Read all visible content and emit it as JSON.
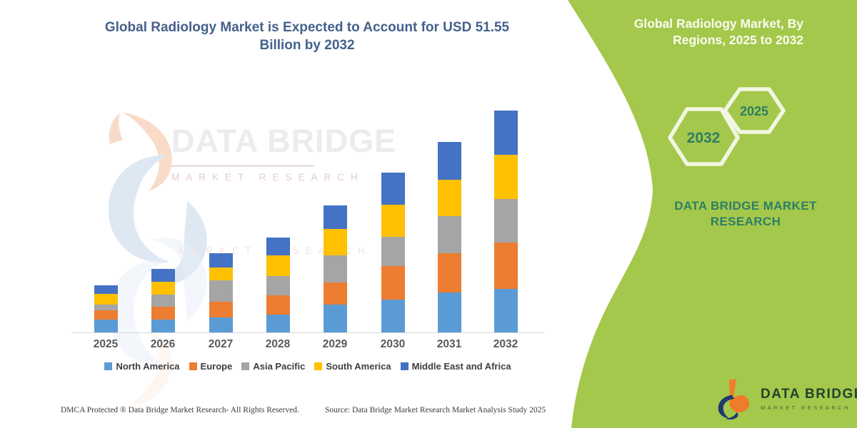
{
  "left_panel": {
    "title": "Global Radiology Market is Expected to Account for USD 51.55 Billion by 2032",
    "footer_left": "DMCA Protected ® Data Bridge Market Research-  All Rights Reserved.",
    "footer_right": "Source: Data Bridge Market Research  Market Analysis Study 2025",
    "watermark": {
      "brand": "DATA BRIDGE",
      "sub": "MARKET RESEARCH"
    }
  },
  "right_panel": {
    "title_line1": "Global Radiology Market, By",
    "title_line2": "Regions, 2025 to 2032",
    "hexagon_big_label": "2032",
    "hexagon_small_label": "2025",
    "caption_line1": "DATA BRIDGE MARKET",
    "caption_line2": "RESEARCH",
    "background_color": "#a4c84b",
    "hexagon_outline_color": "#f2f6e2",
    "text_color": "#2e7e67"
  },
  "brand_logo": {
    "name": "DATA BRIDGE",
    "sub": "MARKET RESEARCH"
  },
  "chart_data": {
    "type": "bar",
    "stacked": true,
    "title": "Global Radiology Market is Expected to Account for USD 51.55 Billion by 2032",
    "unit": "USD Billion",
    "categories": [
      "2025",
      "2026",
      "2027",
      "2028",
      "2029",
      "2030",
      "2031",
      "2032"
    ],
    "series": [
      {
        "name": "North America",
        "color": "#5b9bd5",
        "values": [
          3.0,
          3.0,
          3.5,
          4.1,
          6.5,
          7.6,
          9.3,
          10.1
        ]
      },
      {
        "name": "Europe",
        "color": "#ed7d31",
        "values": [
          2.2,
          3.0,
          3.6,
          4.5,
          5.1,
          7.8,
          9.1,
          10.8
        ]
      },
      {
        "name": "Asia Pacific",
        "color": "#a5a5a5",
        "values": [
          1.3,
          2.8,
          5.0,
          4.5,
          6.3,
          6.8,
          8.6,
          10.1
        ]
      },
      {
        "name": "South America",
        "color": "#ffc000",
        "values": [
          2.5,
          3.0,
          3.0,
          4.8,
          6.1,
          7.5,
          8.5,
          10.25
        ]
      },
      {
        "name": "Middle East and Africa",
        "color": "#4472c4",
        "values": [
          2.0,
          3.0,
          3.3,
          4.1,
          5.5,
          7.5,
          8.8,
          10.3
        ]
      }
    ],
    "totals_by_year": [
      11.0,
      14.8,
      18.4,
      22.0,
      29.5,
      37.2,
      44.3,
      51.55
    ],
    "ylim": [
      0,
      55
    ],
    "grid": false,
    "legend_position": "bottom",
    "x_axis_line": true
  }
}
